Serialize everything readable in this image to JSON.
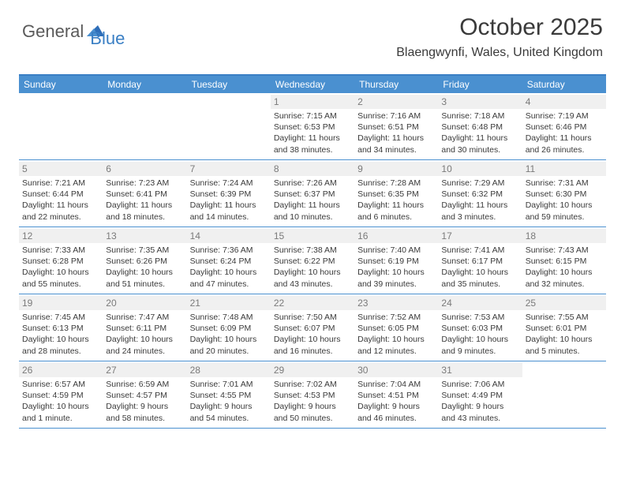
{
  "brand": {
    "part1": "General",
    "part2": "Blue"
  },
  "title": "October 2025",
  "location": "Blaengwynfi, Wales, United Kingdom",
  "colors": {
    "header_bg": "#4a90d0",
    "header_text": "#ffffff",
    "border": "#4a90d0",
    "daynum_bg": "#f0f0f0",
    "daynum_text": "#7a7a7a",
    "body_text": "#3a3a3a",
    "brand_gray": "#5a5a5a",
    "brand_blue": "#3a7fc4"
  },
  "typography": {
    "title_fontsize": 30,
    "location_fontsize": 16,
    "dayhead_fontsize": 12,
    "daynum_fontsize": 12,
    "body_fontsize": 10.5
  },
  "day_headers": [
    "Sunday",
    "Monday",
    "Tuesday",
    "Wednesday",
    "Thursday",
    "Friday",
    "Saturday"
  ],
  "weeks": [
    [
      {
        "n": "",
        "sr": "",
        "ss": "",
        "dl": ""
      },
      {
        "n": "",
        "sr": "",
        "ss": "",
        "dl": ""
      },
      {
        "n": "",
        "sr": "",
        "ss": "",
        "dl": ""
      },
      {
        "n": "1",
        "sr": "Sunrise: 7:15 AM",
        "ss": "Sunset: 6:53 PM",
        "dl": "Daylight: 11 hours and 38 minutes."
      },
      {
        "n": "2",
        "sr": "Sunrise: 7:16 AM",
        "ss": "Sunset: 6:51 PM",
        "dl": "Daylight: 11 hours and 34 minutes."
      },
      {
        "n": "3",
        "sr": "Sunrise: 7:18 AM",
        "ss": "Sunset: 6:48 PM",
        "dl": "Daylight: 11 hours and 30 minutes."
      },
      {
        "n": "4",
        "sr": "Sunrise: 7:19 AM",
        "ss": "Sunset: 6:46 PM",
        "dl": "Daylight: 11 hours and 26 minutes."
      }
    ],
    [
      {
        "n": "5",
        "sr": "Sunrise: 7:21 AM",
        "ss": "Sunset: 6:44 PM",
        "dl": "Daylight: 11 hours and 22 minutes."
      },
      {
        "n": "6",
        "sr": "Sunrise: 7:23 AM",
        "ss": "Sunset: 6:41 PM",
        "dl": "Daylight: 11 hours and 18 minutes."
      },
      {
        "n": "7",
        "sr": "Sunrise: 7:24 AM",
        "ss": "Sunset: 6:39 PM",
        "dl": "Daylight: 11 hours and 14 minutes."
      },
      {
        "n": "8",
        "sr": "Sunrise: 7:26 AM",
        "ss": "Sunset: 6:37 PM",
        "dl": "Daylight: 11 hours and 10 minutes."
      },
      {
        "n": "9",
        "sr": "Sunrise: 7:28 AM",
        "ss": "Sunset: 6:35 PM",
        "dl": "Daylight: 11 hours and 6 minutes."
      },
      {
        "n": "10",
        "sr": "Sunrise: 7:29 AM",
        "ss": "Sunset: 6:32 PM",
        "dl": "Daylight: 11 hours and 3 minutes."
      },
      {
        "n": "11",
        "sr": "Sunrise: 7:31 AM",
        "ss": "Sunset: 6:30 PM",
        "dl": "Daylight: 10 hours and 59 minutes."
      }
    ],
    [
      {
        "n": "12",
        "sr": "Sunrise: 7:33 AM",
        "ss": "Sunset: 6:28 PM",
        "dl": "Daylight: 10 hours and 55 minutes."
      },
      {
        "n": "13",
        "sr": "Sunrise: 7:35 AM",
        "ss": "Sunset: 6:26 PM",
        "dl": "Daylight: 10 hours and 51 minutes."
      },
      {
        "n": "14",
        "sr": "Sunrise: 7:36 AM",
        "ss": "Sunset: 6:24 PM",
        "dl": "Daylight: 10 hours and 47 minutes."
      },
      {
        "n": "15",
        "sr": "Sunrise: 7:38 AM",
        "ss": "Sunset: 6:22 PM",
        "dl": "Daylight: 10 hours and 43 minutes."
      },
      {
        "n": "16",
        "sr": "Sunrise: 7:40 AM",
        "ss": "Sunset: 6:19 PM",
        "dl": "Daylight: 10 hours and 39 minutes."
      },
      {
        "n": "17",
        "sr": "Sunrise: 7:41 AM",
        "ss": "Sunset: 6:17 PM",
        "dl": "Daylight: 10 hours and 35 minutes."
      },
      {
        "n": "18",
        "sr": "Sunrise: 7:43 AM",
        "ss": "Sunset: 6:15 PM",
        "dl": "Daylight: 10 hours and 32 minutes."
      }
    ],
    [
      {
        "n": "19",
        "sr": "Sunrise: 7:45 AM",
        "ss": "Sunset: 6:13 PM",
        "dl": "Daylight: 10 hours and 28 minutes."
      },
      {
        "n": "20",
        "sr": "Sunrise: 7:47 AM",
        "ss": "Sunset: 6:11 PM",
        "dl": "Daylight: 10 hours and 24 minutes."
      },
      {
        "n": "21",
        "sr": "Sunrise: 7:48 AM",
        "ss": "Sunset: 6:09 PM",
        "dl": "Daylight: 10 hours and 20 minutes."
      },
      {
        "n": "22",
        "sr": "Sunrise: 7:50 AM",
        "ss": "Sunset: 6:07 PM",
        "dl": "Daylight: 10 hours and 16 minutes."
      },
      {
        "n": "23",
        "sr": "Sunrise: 7:52 AM",
        "ss": "Sunset: 6:05 PM",
        "dl": "Daylight: 10 hours and 12 minutes."
      },
      {
        "n": "24",
        "sr": "Sunrise: 7:53 AM",
        "ss": "Sunset: 6:03 PM",
        "dl": "Daylight: 10 hours and 9 minutes."
      },
      {
        "n": "25",
        "sr": "Sunrise: 7:55 AM",
        "ss": "Sunset: 6:01 PM",
        "dl": "Daylight: 10 hours and 5 minutes."
      }
    ],
    [
      {
        "n": "26",
        "sr": "Sunrise: 6:57 AM",
        "ss": "Sunset: 4:59 PM",
        "dl": "Daylight: 10 hours and 1 minute."
      },
      {
        "n": "27",
        "sr": "Sunrise: 6:59 AM",
        "ss": "Sunset: 4:57 PM",
        "dl": "Daylight: 9 hours and 58 minutes."
      },
      {
        "n": "28",
        "sr": "Sunrise: 7:01 AM",
        "ss": "Sunset: 4:55 PM",
        "dl": "Daylight: 9 hours and 54 minutes."
      },
      {
        "n": "29",
        "sr": "Sunrise: 7:02 AM",
        "ss": "Sunset: 4:53 PM",
        "dl": "Daylight: 9 hours and 50 minutes."
      },
      {
        "n": "30",
        "sr": "Sunrise: 7:04 AM",
        "ss": "Sunset: 4:51 PM",
        "dl": "Daylight: 9 hours and 46 minutes."
      },
      {
        "n": "31",
        "sr": "Sunrise: 7:06 AM",
        "ss": "Sunset: 4:49 PM",
        "dl": "Daylight: 9 hours and 43 minutes."
      },
      {
        "n": "",
        "sr": "",
        "ss": "",
        "dl": ""
      }
    ]
  ]
}
